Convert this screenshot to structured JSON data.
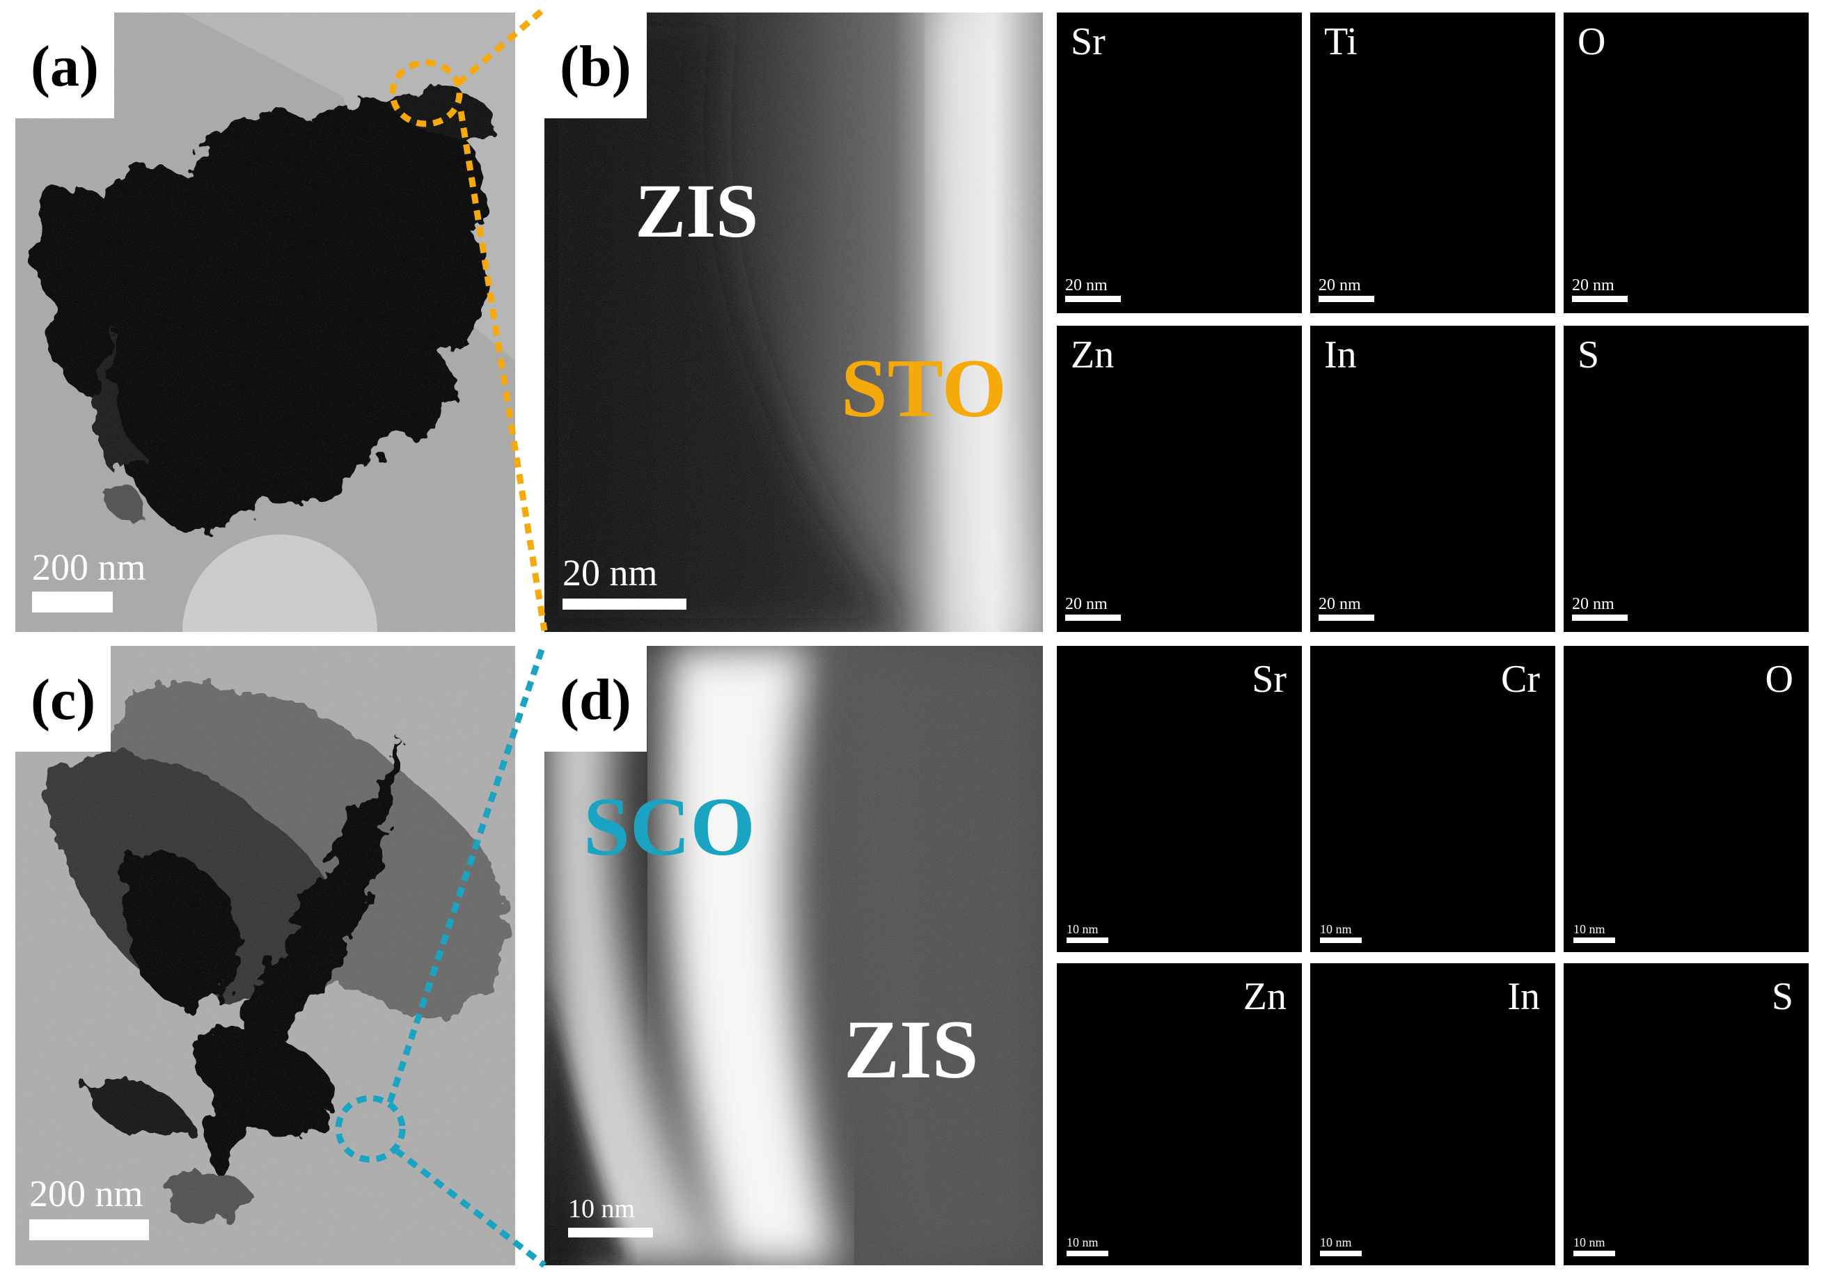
{
  "panels": {
    "a": {
      "label": "(a)",
      "scale": "200 nm"
    },
    "b": {
      "label": "(b)",
      "scale": "20 nm",
      "region_upper": "ZIS",
      "region_lower": "STO"
    },
    "c": {
      "label": "(c)",
      "scale": "200 nm"
    },
    "d": {
      "label": "(d)",
      "scale": "10 nm",
      "region_upper": "SCO",
      "region_lower": "ZIS"
    }
  },
  "maps_top": [
    {
      "element": "Sr",
      "scale": "20 nm",
      "color": "#e08a2a"
    },
    {
      "element": "Ti",
      "scale": "20 nm",
      "color": "#3b48ff"
    },
    {
      "element": "O",
      "scale": "20 nm",
      "color": "#ff2a2a"
    },
    {
      "element": "Zn",
      "scale": "20 nm",
      "color": "#22c92e"
    },
    {
      "element": "In",
      "scale": "20 nm",
      "color": "#2ee8ec"
    },
    {
      "element": "S",
      "scale": "20 nm",
      "color": "#ecec2a"
    }
  ],
  "maps_bottom": [
    {
      "element": "Sr",
      "scale": "10 nm",
      "color": "#e08a2a"
    },
    {
      "element": "Cr",
      "scale": "10 nm",
      "color": "#3b48ff"
    },
    {
      "element": "O",
      "scale": "10 nm",
      "color": "#ff2a2a"
    },
    {
      "element": "Zn",
      "scale": "10 nm",
      "color": "#22c92e"
    },
    {
      "element": "In",
      "scale": "10 nm",
      "color": "#2ee8ec"
    },
    {
      "element": "S",
      "scale": "10 nm",
      "color": "#ecec2a"
    }
  ],
  "colors": {
    "sto_accent": "#f5a90a",
    "sco_accent": "#1aa4c2"
  }
}
